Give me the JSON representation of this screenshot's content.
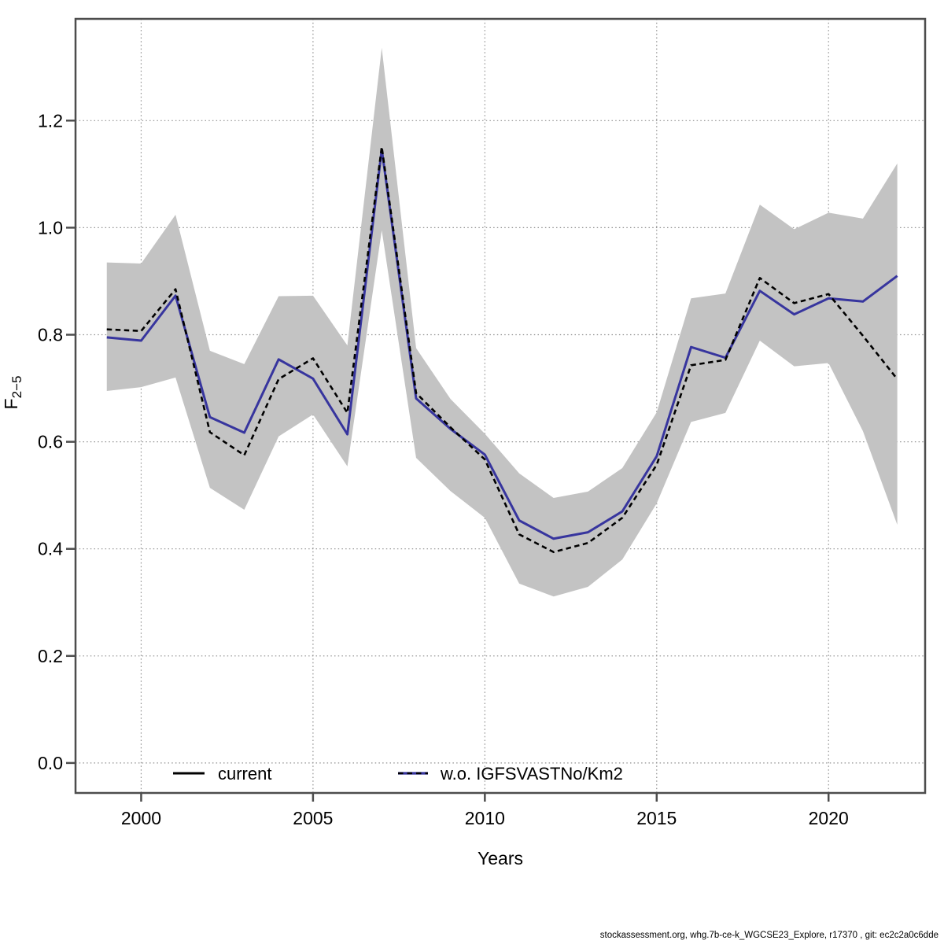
{
  "figure": {
    "footer": "stockassessment.org, whg.7b-ce-k_WGCSE23_Explore, r17370 , git: ec2c2a0c6dde"
  },
  "axes": {
    "x_label": "Years",
    "y_label_main": "F",
    "y_label_sub": "2−5"
  },
  "legend": [
    {
      "label": "current",
      "color": "#000000",
      "swatch": "solid-black-line"
    },
    {
      "label": "w.o. IGFSVASTNo/Km2",
      "color": "#37359e",
      "swatch": "blue-line-with-black-dashes"
    }
  ],
  "colors": {
    "band": "#c3c3c3",
    "grid": "#8f8f8f",
    "frame": "#4d4d4d",
    "current_line": "#000000",
    "wo_line": "#37359e",
    "footer_text": "#3f3f3f"
  },
  "chart_data": {
    "type": "line",
    "title": "",
    "xlabel": "Years",
    "ylabel": "F2−5",
    "grid": "dotted",
    "legend_position": "bottom-inside",
    "x": [
      1999,
      2000,
      2001,
      2002,
      2003,
      2004,
      2005,
      2006,
      2007,
      2008,
      2009,
      2010,
      2011,
      2012,
      2013,
      2014,
      2015,
      2016,
      2017,
      2018,
      2019,
      2020,
      2021,
      2022
    ],
    "series": [
      {
        "name": "current",
        "color": "#000000",
        "line_style": "dashed",
        "values": [
          0.81,
          0.807,
          0.885,
          0.618,
          0.575,
          0.717,
          0.756,
          0.654,
          1.151,
          0.691,
          0.627,
          0.567,
          0.427,
          0.394,
          0.411,
          0.458,
          0.557,
          0.743,
          0.753,
          0.906,
          0.859,
          0.876,
          0.798,
          0.717
        ]
      },
      {
        "name": "w.o. IGFSVASTNo/Km2",
        "color": "#37359e",
        "line_style": "solid",
        "values": [
          0.795,
          0.789,
          0.873,
          0.646,
          0.617,
          0.754,
          0.718,
          0.614,
          1.146,
          0.681,
          0.624,
          0.576,
          0.453,
          0.419,
          0.431,
          0.47,
          0.573,
          0.777,
          0.757,
          0.882,
          0.838,
          0.868,
          0.862,
          0.91
        ]
      }
    ],
    "band": {
      "name": "confidence-interval-of-current",
      "color": "#c3c3c3",
      "lower": [
        0.695,
        0.702,
        0.72,
        0.514,
        0.473,
        0.61,
        0.651,
        0.554,
        0.995,
        0.57,
        0.508,
        0.458,
        0.335,
        0.311,
        0.329,
        0.38,
        0.485,
        0.637,
        0.654,
        0.789,
        0.741,
        0.747,
        0.62,
        0.445
      ],
      "upper": [
        0.935,
        0.933,
        1.024,
        0.77,
        0.745,
        0.872,
        0.873,
        0.78,
        1.336,
        0.775,
        0.68,
        0.615,
        0.541,
        0.495,
        0.507,
        0.551,
        0.655,
        0.868,
        0.877,
        1.043,
        0.997,
        1.028,
        1.017,
        1.12
      ]
    },
    "x_ticks": [
      2000,
      2005,
      2010,
      2015,
      2020
    ],
    "y_ticks": [
      0.0,
      0.2,
      0.4,
      0.6,
      0.8,
      1.0,
      1.2
    ],
    "xlim": [
      1998.09,
      2022.81
    ],
    "ylim": [
      -0.056,
      1.39
    ]
  }
}
